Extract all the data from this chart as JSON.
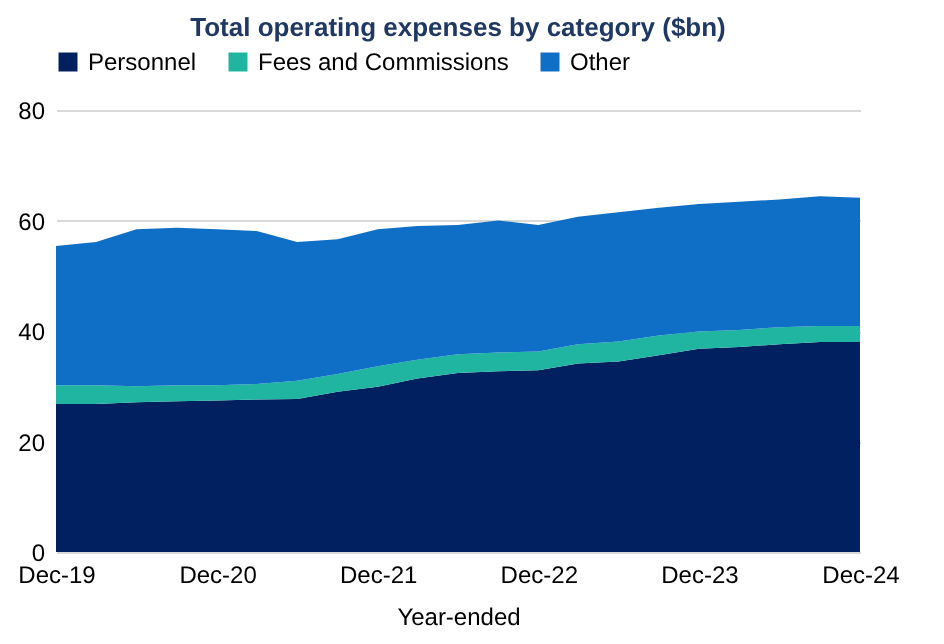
{
  "chart_data": {
    "type": "area",
    "stacked": true,
    "title": "Total operating expenses by category ($bn)",
    "xlabel": "Year-ended",
    "x": [
      "2019-12",
      "2020-03",
      "2020-06",
      "2020-09",
      "2020-12",
      "2021-03",
      "2021-06",
      "2021-09",
      "2021-12",
      "2022-03",
      "2022-06",
      "2022-09",
      "2022-12",
      "2023-03",
      "2023-06",
      "2023-09",
      "2023-12",
      "2024-03",
      "2024-06",
      "2024-09",
      "2024-12"
    ],
    "series": [
      {
        "name": "Personnel",
        "color": "#002060",
        "values": [
          26.8,
          26.8,
          27.1,
          27.3,
          27.4,
          27.6,
          27.7,
          29.0,
          29.9,
          31.4,
          32.4,
          32.7,
          32.9,
          34.1,
          34.5,
          35.6,
          36.8,
          37.1,
          37.6,
          38.0,
          38.0
        ]
      },
      {
        "name": "Fees and Commissions",
        "color": "#1fb5a0",
        "values": [
          3.4,
          3.4,
          2.9,
          2.9,
          2.8,
          2.8,
          3.3,
          3.2,
          3.7,
          3.4,
          3.4,
          3.4,
          3.4,
          3.5,
          3.6,
          3.6,
          3.1,
          3.1,
          3.1,
          2.9,
          2.9
        ]
      },
      {
        "name": "Other",
        "color": "#0f6fc6",
        "values": [
          25.2,
          25.9,
          28.4,
          28.5,
          28.2,
          27.7,
          25.1,
          24.4,
          24.8,
          24.2,
          23.4,
          23.9,
          22.9,
          23.1,
          23.4,
          23.1,
          23.1,
          23.2,
          23.1,
          23.5,
          23.2
        ]
      }
    ],
    "xlim": [
      "2019-12",
      "2024-12"
    ],
    "xticks": [
      {
        "value": "2019-12",
        "label": "Dec-19"
      },
      {
        "value": "2020-12",
        "label": "Dec-20"
      },
      {
        "value": "2021-12",
        "label": "Dec-21"
      },
      {
        "value": "2022-12",
        "label": "Dec-22"
      },
      {
        "value": "2023-12",
        "label": "Dec-23"
      },
      {
        "value": "2024-12",
        "label": "Dec-24"
      }
    ],
    "ylim": [
      0,
      80
    ],
    "yticks": [
      0,
      20,
      40,
      60,
      80
    ],
    "grid": "y",
    "legend": "top"
  }
}
